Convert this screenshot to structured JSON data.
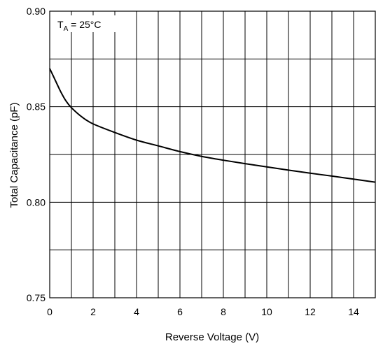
{
  "chart_data": {
    "type": "line",
    "xlabel": "Reverse Voltage (V)",
    "ylabel": "Total Capacitance (pF)",
    "xlim": [
      0,
      15
    ],
    "ylim": [
      0.75,
      0.9
    ],
    "x_ticks": [
      0,
      2,
      4,
      6,
      8,
      10,
      12,
      14
    ],
    "x_tick_labels": [
      "0",
      "2",
      "4",
      "6",
      "8",
      "10",
      "12",
      "14"
    ],
    "x_grid_step": 1,
    "y_ticks": [
      0.75,
      0.8,
      0.85,
      0.9
    ],
    "y_tick_labels": [
      "0.75",
      "0.80",
      "0.85",
      "0.90"
    ],
    "y_grid_step": 0.025,
    "grid": true,
    "annotation": {
      "main": "T",
      "sub": "A",
      "suffix": " = 25°C"
    },
    "series": [
      {
        "x": [
          0,
          0.25,
          0.5,
          0.75,
          1,
          1.5,
          2,
          3,
          4,
          5,
          6,
          7,
          8,
          9,
          10,
          11,
          12,
          13,
          14,
          15
        ],
        "values": [
          0.87,
          0.864,
          0.858,
          0.853,
          0.8495,
          0.8445,
          0.841,
          0.8365,
          0.8325,
          0.8295,
          0.8265,
          0.824,
          0.822,
          0.8202,
          0.8185,
          0.8168,
          0.8152,
          0.8137,
          0.8121,
          0.8105
        ]
      }
    ]
  }
}
